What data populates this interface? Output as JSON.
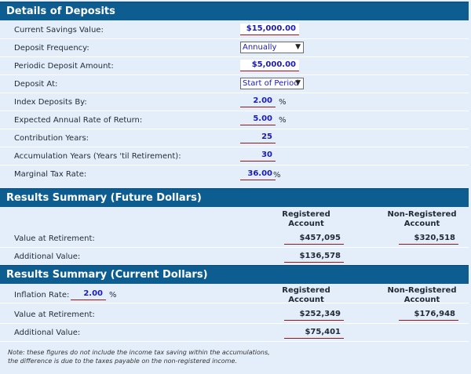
{
  "deposits": {
    "title": "Details of Deposits",
    "current_savings": {
      "label": "Current Savings Value:",
      "value": "$15,000.00"
    },
    "deposit_frequency": {
      "label": "Deposit Frequency:",
      "value": "Annually"
    },
    "periodic_amount": {
      "label": "Periodic Deposit Amount:",
      "value": "$5,000.00"
    },
    "deposit_at": {
      "label": "Deposit At:",
      "value": "Start of Period"
    },
    "index_by": {
      "label": "Index Deposits By:",
      "value": "2.00",
      "unit": "%"
    },
    "rate_of_return": {
      "label": "Expected Annual Rate of Return:",
      "value": "5.00",
      "unit": "%"
    },
    "contribution_years": {
      "label": "Contribution Years:",
      "value": "25"
    },
    "accumulation_years": {
      "label": "Accumulation Years (Years 'til Retirement):",
      "value": "30"
    },
    "marginal_tax": {
      "label": "Marginal Tax Rate:",
      "value": "36.00",
      "unit": "%"
    }
  },
  "future": {
    "title": "Results Summary (Future Dollars)",
    "col_registered": "Registered Account",
    "col_nonregistered": "Non-Registered Account",
    "value_at_retirement": {
      "label": "Value at Retirement:",
      "registered": "$457,095",
      "nonregistered": "$320,518"
    },
    "additional_value": {
      "label": "Additional Value:",
      "registered": "$136,578"
    }
  },
  "current": {
    "title": "Results Summary (Current Dollars)",
    "inflation": {
      "label": "Inflation Rate:",
      "value": "2.00",
      "unit": "%"
    },
    "col_registered": "Registered Account",
    "col_nonregistered": "Non-Registered Account",
    "value_at_retirement": {
      "label": "Value at Retirement:",
      "registered": "$252,349",
      "nonregistered": "$176,948"
    },
    "additional_value": {
      "label": "Additional Value:",
      "registered": "$75,401"
    }
  },
  "note": {
    "line1": "Note: these figures do not include the income tax saving within the accumulations,",
    "line2": "the difference is due to the taxes payable on the non-registered income."
  },
  "colors": {
    "header_bg": "#0e5d90",
    "panel_bg": "#e4eefa",
    "input_text": "#1a1ab8",
    "underline": "#8b1a1a"
  }
}
